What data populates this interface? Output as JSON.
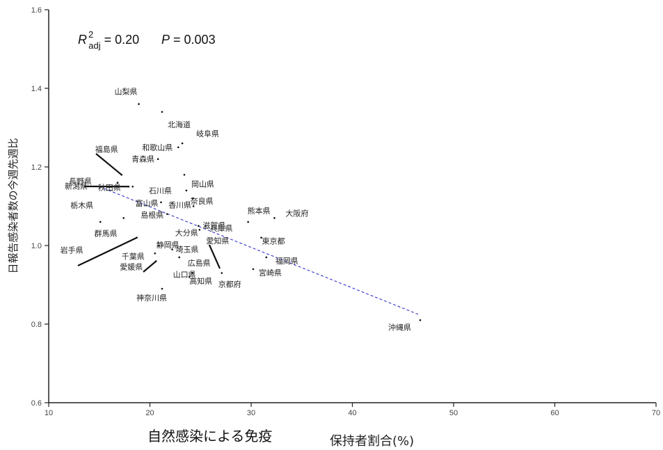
{
  "chart_data": {
    "type": "scatter",
    "title": "",
    "xlabel_main": "自然感染による免疫",
    "xlabel_suffix": "保持者割合(%)",
    "ylabel": "日報告感染者数の今週先週比",
    "xlim": [
      10,
      70
    ],
    "ylim": [
      0.6,
      1.6
    ],
    "xticks": [
      10,
      20,
      30,
      40,
      50,
      60,
      70
    ],
    "yticks": [
      0.6,
      0.8,
      1.0,
      1.2,
      1.4,
      1.6
    ],
    "annotation": {
      "r_symbol": "R",
      "r_sup": "2",
      "r_sub": "adj",
      "r_value": " = 0.20",
      "p_symbol": "P",
      "p_value": " = 0.003"
    },
    "regression": {
      "x": [
        15.0,
        46.5
      ],
      "y": [
        1.15,
        0.825
      ],
      "color": "#3333cc"
    },
    "points": [
      {
        "label": "山梨県",
        "x": 18.9,
        "y": 1.36
      },
      {
        "label": "北海道",
        "x": 21.2,
        "y": 1.34
      },
      {
        "label": "岐阜県",
        "x": 23.2,
        "y": 1.26
      },
      {
        "label": "和歌山県",
        "x": 22.8,
        "y": 1.25
      },
      {
        "label": "福島県",
        "x": 17.2,
        "y": 1.18
      },
      {
        "label": "青森県",
        "x": 20.8,
        "y": 1.22
      },
      {
        "label": "岡山県",
        "x": 23.4,
        "y": 1.18
      },
      {
        "label": "長野県",
        "x": 16.8,
        "y": 1.16
      },
      {
        "label": "新潟県",
        "x": 17.9,
        "y": 1.15
      },
      {
        "label": "秋田県",
        "x": 18.3,
        "y": 1.15
      },
      {
        "label": "石川県",
        "x": 23.6,
        "y": 1.14
      },
      {
        "label": "奈良県",
        "x": 24.2,
        "y": 1.12
      },
      {
        "label": "富山県",
        "x": 21.1,
        "y": 1.11
      },
      {
        "label": "香川県",
        "x": 24.3,
        "y": 1.1
      },
      {
        "label": "栃木県",
        "x": 15.1,
        "y": 1.06
      },
      {
        "label": "滋賀県",
        "x": 24.8,
        "y": 1.05
      },
      {
        "label": "熊本県",
        "x": 29.7,
        "y": 1.06
      },
      {
        "label": "大阪府",
        "x": 32.3,
        "y": 1.07
      },
      {
        "label": "群馬県",
        "x": 17.4,
        "y": 1.07
      },
      {
        "label": "島根県",
        "x": 21.7,
        "y": 1.08
      },
      {
        "label": "大分県",
        "x": 24.9,
        "y": 1.04
      },
      {
        "label": "兵庫県",
        "x": 25.5,
        "y": 1.05
      },
      {
        "label": "東京都",
        "x": 31.0,
        "y": 1.02
      },
      {
        "label": "静岡県",
        "x": 20.9,
        "y": 1.0
      },
      {
        "label": "埼玉県",
        "x": 22.2,
        "y": 0.99
      },
      {
        "label": "愛知県",
        "x": 25.9,
        "y": 1.0
      },
      {
        "label": "岩手県",
        "x": 18.7,
        "y": 1.02
      },
      {
        "label": "千葉県",
        "x": 20.5,
        "y": 0.98
      },
      {
        "label": "福岡県",
        "x": 31.5,
        "y": 0.97
      },
      {
        "label": "広島県",
        "x": 22.9,
        "y": 0.97
      },
      {
        "label": "愛媛県",
        "x": 20.6,
        "y": 0.96
      },
      {
        "label": "山口県",
        "x": 24.2,
        "y": 0.93
      },
      {
        "label": "京都府",
        "x": 27.1,
        "y": 0.93
      },
      {
        "label": "宮崎県",
        "x": 30.2,
        "y": 0.94
      },
      {
        "label": "高知県",
        "x": 23.9,
        "y": 0.92
      },
      {
        "label": "神奈川県",
        "x": 21.2,
        "y": 0.89
      },
      {
        "label": "沖縄県",
        "x": 46.7,
        "y": 0.81
      }
    ]
  }
}
